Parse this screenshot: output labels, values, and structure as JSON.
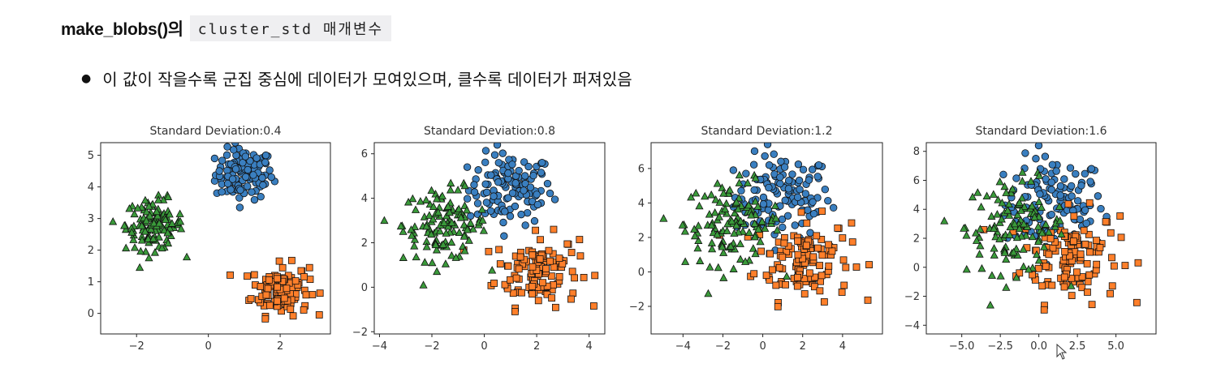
{
  "heading": {
    "function_name": "make_blobs()의",
    "param_code": "cluster_std  매개변수"
  },
  "bullet": {
    "text": "이 값이 작을수록 군집 중심에 데이터가 모여있으며, 클수록 데이터가 퍼져있음"
  },
  "colors": {
    "cluster0": "#3a7fc0",
    "cluster1": "#ff7f2a",
    "cluster2": "#3a9a3a",
    "edge": "#111111"
  },
  "chart_data": [
    {
      "type": "scatter",
      "title": "Standard Deviation:0.4",
      "std": 0.4,
      "xlim": [
        -3.0,
        3.4
      ],
      "ylim": [
        -0.65,
        5.4
      ],
      "xticks": [
        -2,
        0,
        2
      ],
      "yticks": [
        0,
        1,
        2,
        3,
        4,
        5
      ],
      "series": [
        {
          "marker": "circle",
          "color": "#3a7fc0",
          "center": [
            1.0,
            4.4
          ]
        },
        {
          "marker": "square",
          "color": "#ff7f2a",
          "center": [
            2.0,
            0.75
          ]
        },
        {
          "marker": "triangle",
          "color": "#3a9a3a",
          "center": [
            -1.5,
            2.8
          ]
        }
      ]
    },
    {
      "type": "scatter",
      "title": "Standard Deviation:0.8",
      "std": 0.8,
      "xlim": [
        -4.2,
        4.6
      ],
      "ylim": [
        -2.1,
        6.5
      ],
      "xticks": [
        -4,
        -2,
        0,
        2,
        4
      ],
      "yticks": [
        -2,
        0,
        2,
        4,
        6
      ],
      "series": [
        {
          "marker": "circle",
          "color": "#3a7fc0",
          "center": [
            1.0,
            4.4
          ]
        },
        {
          "marker": "square",
          "color": "#ff7f2a",
          "center": [
            2.0,
            0.75
          ]
        },
        {
          "marker": "triangle",
          "color": "#3a9a3a",
          "center": [
            -1.5,
            2.8
          ]
        }
      ]
    },
    {
      "type": "scatter",
      "title": "Standard Deviation:1.2",
      "std": 1.2,
      "xlim": [
        -5.6,
        6.0
      ],
      "ylim": [
        -3.6,
        7.5
      ],
      "xticks": [
        -4,
        -2,
        0,
        2,
        4
      ],
      "yticks": [
        -2,
        0,
        2,
        4,
        6
      ],
      "series": [
        {
          "marker": "circle",
          "color": "#3a7fc0",
          "center": [
            1.0,
            4.4
          ]
        },
        {
          "marker": "square",
          "color": "#ff7f2a",
          "center": [
            2.0,
            0.75
          ]
        },
        {
          "marker": "triangle",
          "color": "#3a9a3a",
          "center": [
            -1.5,
            2.8
          ]
        }
      ]
    },
    {
      "type": "scatter",
      "title": "Standard Deviation:1.6",
      "std": 1.6,
      "xlim": [
        -7.3,
        7.6
      ],
      "ylim": [
        -4.6,
        8.6
      ],
      "xticks": [
        -5.0,
        -2.5,
        0.0,
        2.5,
        5.0
      ],
      "xticklabels": [
        "−5.0",
        "−2.5",
        "0.0",
        "2.5",
        "5.0"
      ],
      "yticks": [
        -4,
        -2,
        0,
        2,
        4,
        6,
        8
      ],
      "series": [
        {
          "marker": "circle",
          "color": "#3a7fc0",
          "center": [
            1.0,
            4.4
          ]
        },
        {
          "marker": "square",
          "color": "#ff7f2a",
          "center": [
            2.0,
            0.75
          ]
        },
        {
          "marker": "triangle",
          "color": "#3a9a3a",
          "center": [
            -1.5,
            2.8
          ]
        }
      ]
    }
  ]
}
